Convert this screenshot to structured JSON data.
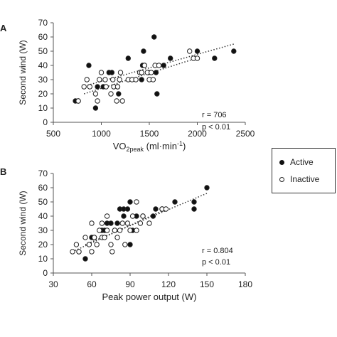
{
  "chart_data": [
    {
      "type": "scatter",
      "panel_label": "A",
      "xlabel_main": "VO",
      "xlabel_sub": "2peak",
      "xlabel_rest": " (ml·min",
      "xlabel_sup": "-1",
      "xlabel_close": ")",
      "ylabel": "Second wind (W)",
      "xlim": [
        500,
        2500
      ],
      "ylim": [
        0,
        70
      ],
      "xticks": [
        "500",
        "1000",
        "1500",
        "2000",
        "2500"
      ],
      "yticks": [
        "0",
        "10",
        "20",
        "30",
        "40",
        "50",
        "60",
        "70"
      ],
      "annotation_r": "r = 706",
      "annotation_p": "p < 0.01",
      "series": [
        {
          "name": "Active",
          "marker": "filled",
          "points": [
            [
              730,
              15
            ],
            [
              760,
              15
            ],
            [
              870,
              40
            ],
            [
              940,
              10
            ],
            [
              960,
              25
            ],
            [
              1020,
              25
            ],
            [
              1080,
              35
            ],
            [
              1110,
              35
            ],
            [
              1170,
              25
            ],
            [
              1180,
              20
            ],
            [
              1280,
              45
            ],
            [
              1420,
              30
            ],
            [
              1430,
              40
            ],
            [
              1440,
              50
            ],
            [
              1450,
              40
            ],
            [
              1490,
              35
            ],
            [
              1550,
              60
            ],
            [
              1570,
              35
            ],
            [
              1580,
              20
            ],
            [
              1650,
              40
            ],
            [
              1720,
              45
            ],
            [
              2000,
              50
            ],
            [
              2180,
              45
            ],
            [
              2380,
              50
            ]
          ],
          "trend": [
            [
              800,
              25
            ],
            [
              2380,
              55
            ]
          ]
        },
        {
          "name": "Inactive",
          "marker": "hollow",
          "points": [
            [
              760,
              15
            ],
            [
              820,
              25
            ],
            [
              850,
              30
            ],
            [
              880,
              25
            ],
            [
              940,
              20
            ],
            [
              960,
              15
            ],
            [
              980,
              30
            ],
            [
              1000,
              35
            ],
            [
              1040,
              30
            ],
            [
              1050,
              25
            ],
            [
              1100,
              20
            ],
            [
              1120,
              30
            ],
            [
              1130,
              25
            ],
            [
              1160,
              15
            ],
            [
              1170,
              25
            ],
            [
              1190,
              30
            ],
            [
              1200,
              35
            ],
            [
              1220,
              15
            ],
            [
              1280,
              30
            ],
            [
              1320,
              30
            ],
            [
              1360,
              30
            ],
            [
              1400,
              35
            ],
            [
              1420,
              35
            ],
            [
              1450,
              40
            ],
            [
              1480,
              35
            ],
            [
              1500,
              30
            ],
            [
              1520,
              35
            ],
            [
              1540,
              30
            ],
            [
              1560,
              40
            ],
            [
              1600,
              40
            ],
            [
              1920,
              50
            ],
            [
              1960,
              45
            ],
            [
              2000,
              45
            ]
          ],
          "trend": [
            [
              820,
              20
            ],
            [
              1990,
              45
            ]
          ]
        }
      ]
    },
    {
      "type": "scatter",
      "panel_label": "B",
      "xlabel": "Peak power output (W)",
      "ylabel": "Second wind (W)",
      "xlim": [
        30,
        180
      ],
      "ylim": [
        0,
        70
      ],
      "xticks": [
        "30",
        "60",
        "90",
        "120",
        "150",
        "180"
      ],
      "yticks": [
        "0",
        "10",
        "20",
        "30",
        "40",
        "50",
        "60",
        "70"
      ],
      "annotation_r": "r = 0.804",
      "annotation_p": "p < 0.01",
      "series": [
        {
          "name": "Active",
          "marker": "filled",
          "points": [
            [
              50,
              15
            ],
            [
              55,
              10
            ],
            [
              60,
              25
            ],
            [
              62,
              25
            ],
            [
              68,
              30
            ],
            [
              70,
              30
            ],
            [
              72,
              35
            ],
            [
              75,
              35
            ],
            [
              78,
              30
            ],
            [
              80,
              35
            ],
            [
              82,
              45
            ],
            [
              85,
              40
            ],
            [
              85,
              45
            ],
            [
              88,
              45
            ],
            [
              90,
              50
            ],
            [
              90,
              20
            ],
            [
              92,
              30
            ],
            [
              95,
              40
            ],
            [
              100,
              40
            ],
            [
              108,
              40
            ],
            [
              110,
              45
            ],
            [
              115,
              45
            ],
            [
              125,
              50
            ],
            [
              140,
              45
            ],
            [
              140,
              50
            ],
            [
              150,
              60
            ]
          ],
          "trend": [
            [
              55,
              20
            ],
            [
              150,
              56
            ]
          ]
        },
        {
          "name": "Inactive",
          "marker": "hollow",
          "points": [
            [
              45,
              15
            ],
            [
              48,
              20
            ],
            [
              50,
              15
            ],
            [
              55,
              25
            ],
            [
              58,
              20
            ],
            [
              60,
              15
            ],
            [
              60,
              35
            ],
            [
              62,
              25
            ],
            [
              64,
              20
            ],
            [
              66,
              30
            ],
            [
              68,
              35
            ],
            [
              68,
              25
            ],
            [
              70,
              25
            ],
            [
              72,
              40
            ],
            [
              72,
              30
            ],
            [
              75,
              20
            ],
            [
              76,
              15
            ],
            [
              78,
              30
            ],
            [
              80,
              25
            ],
            [
              82,
              30
            ],
            [
              84,
              35
            ],
            [
              86,
              20
            ],
            [
              88,
              35
            ],
            [
              90,
              30
            ],
            [
              92,
              40
            ],
            [
              95,
              50
            ],
            [
              95,
              30
            ],
            [
              98,
              35
            ],
            [
              100,
              40
            ],
            [
              105,
              35
            ],
            [
              115,
              45
            ],
            [
              118,
              45
            ]
          ],
          "trend": [
            [
              45,
              15
            ],
            [
              118,
              45
            ]
          ]
        }
      ]
    }
  ],
  "legend": {
    "active_label": "Active",
    "inactive_label": "Inactive"
  }
}
